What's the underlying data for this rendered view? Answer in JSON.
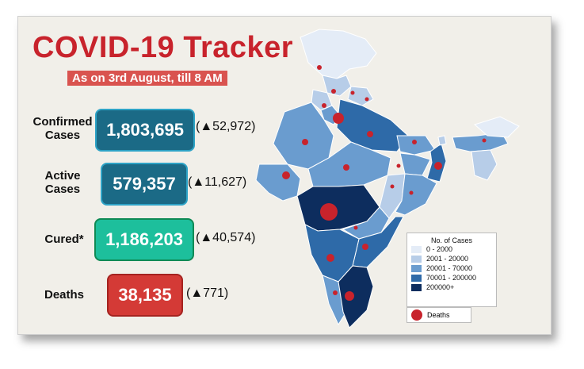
{
  "title": "COVID-19 Tracker",
  "subtitle": "As on 3rd August, till 8 AM",
  "stats": {
    "confirmed": {
      "label_line1": "Confirmed",
      "label_line2": "Cases",
      "value": "1,803,695",
      "delta": "(▲52,972)",
      "color": "#1b6a86"
    },
    "active": {
      "label_line1": "Active",
      "label_line2": "Cases",
      "value": "579,357",
      "delta": "(▲11,627)",
      "color": "#1b6a86"
    },
    "cured": {
      "label": "Cured*",
      "value": "1,186,203",
      "delta": "(▲40,574)",
      "color": "#1dbf9c"
    },
    "deaths": {
      "label": "Deaths",
      "value": "38,135",
      "delta": "(▲771)",
      "color": "#d43a36"
    }
  },
  "legend": {
    "title": "No. of Cases",
    "items": [
      {
        "label": "0 - 2000",
        "color": "#e4ecf7"
      },
      {
        "label": "2001 - 20000",
        "color": "#b7cde8"
      },
      {
        "label": "20001 - 70000",
        "color": "#6a9ccf"
      },
      {
        "label": "70001 - 200000",
        "color": "#2e6aa8"
      },
      {
        "label": "200000+",
        "color": "#0d2d5e"
      }
    ],
    "deaths_label": "Deaths"
  },
  "icons": {
    "deaths_marker": "red-circle-icon"
  }
}
